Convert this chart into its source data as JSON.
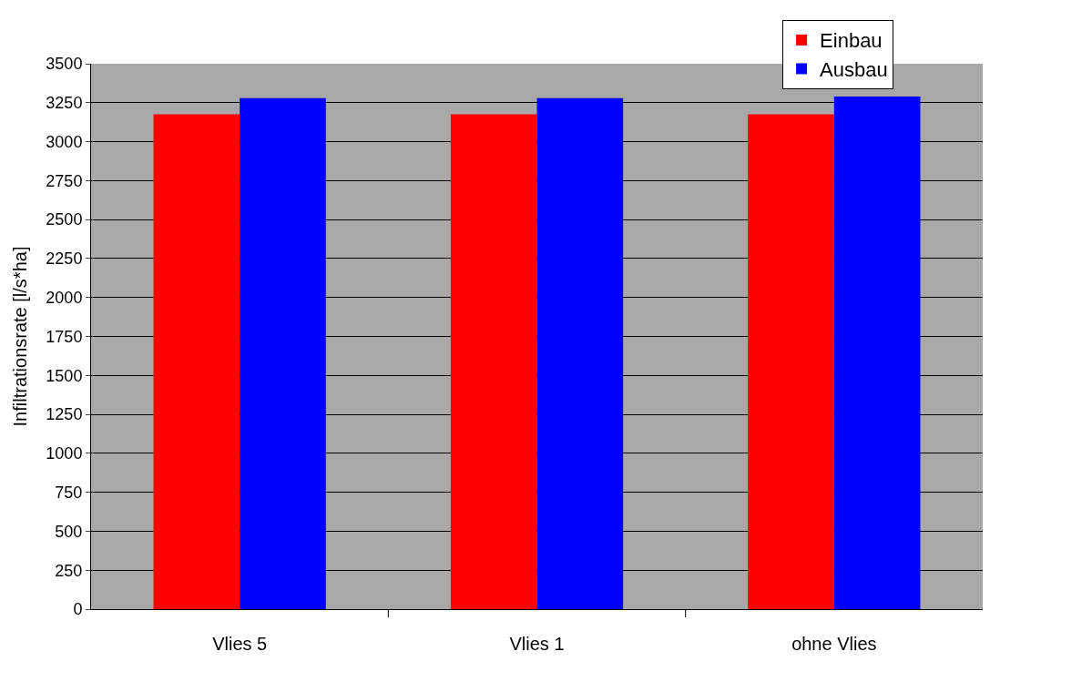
{
  "chart_data": {
    "type": "bar",
    "ylabel": "Infiltrationsrate [l/s*ha]",
    "categories": [
      "Vlies 5",
      "Vlies 1",
      "ohne Vlies"
    ],
    "series": [
      {
        "name": "Einbau",
        "color": "#ff0000",
        "values": [
          3175,
          3175,
          3175
        ]
      },
      {
        "name": "Ausbau",
        "color": "#0000ff",
        "values": [
          3280,
          3280,
          3290
        ]
      }
    ],
    "ylim": [
      0,
      3500
    ],
    "yticks": [
      0,
      250,
      500,
      750,
      1000,
      1250,
      1500,
      1750,
      2000,
      2250,
      2500,
      2750,
      3000,
      3250,
      3500
    ],
    "grid": "y",
    "legend": "top right"
  }
}
